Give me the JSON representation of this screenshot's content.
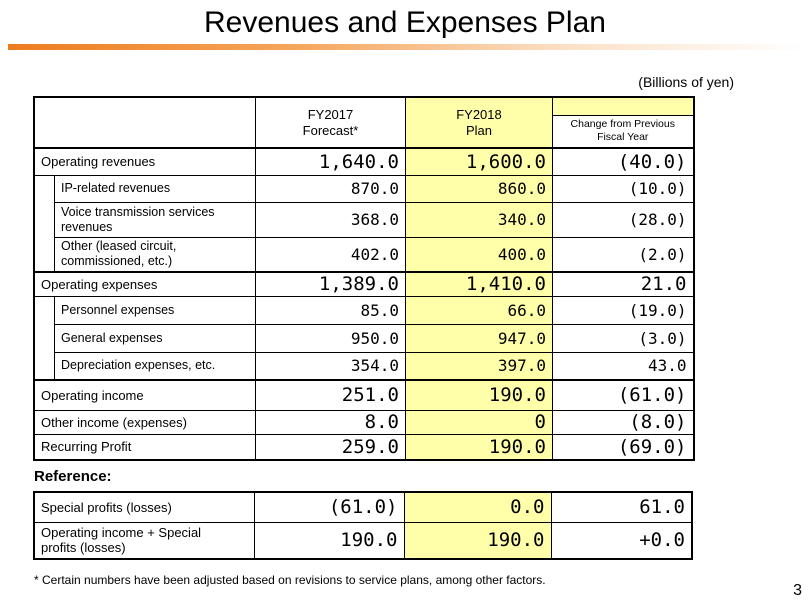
{
  "title": "Revenues and Expenses Plan",
  "units": "(Billions of yen)",
  "header": {
    "fy2017": "FY2017",
    "fy2017_sub": "Forecast*",
    "fy2018": "FY2018",
    "fy2018_sub": "Plan",
    "change": "Change from Previous",
    "change_sub": "Fiscal Year"
  },
  "rows": {
    "op_rev": {
      "label": "Operating revenues",
      "fy2017": "1,640.0",
      "fy2018": "1,600.0",
      "change": "(40.0)"
    },
    "ip_rev": {
      "label": "IP-related revenues",
      "fy2017": "870.0",
      "fy2018": "860.0",
      "change": "(10.0)"
    },
    "voice_rev": {
      "label1": "Voice transmission services",
      "label2": "revenues",
      "fy2017": "368.0",
      "fy2018": "340.0",
      "change": "(28.0)"
    },
    "other_rev": {
      "label1": "Other (leased circuit,",
      "label2": "commissioned, etc.)",
      "fy2017": "402.0",
      "fy2018": "400.0",
      "change": "(2.0)"
    },
    "op_exp": {
      "label": "Operating expenses",
      "fy2017": "1,389.0",
      "fy2018": "1,410.0",
      "change": "21.0"
    },
    "personnel": {
      "label": "Personnel expenses",
      "fy2017": "85.0",
      "fy2018": "66.0",
      "change": "(19.0)"
    },
    "general": {
      "label": "General expenses",
      "fy2017": "950.0",
      "fy2018": "947.0",
      "change": "(3.0)"
    },
    "depreciation": {
      "label": "Depreciation expenses, etc.",
      "fy2017": "354.0",
      "fy2018": "397.0",
      "change": "43.0"
    },
    "op_income": {
      "label": "Operating income",
      "fy2017": "251.0",
      "fy2018": "190.0",
      "change": "(61.0)"
    },
    "other_income": {
      "label": "Other income (expenses)",
      "fy2017": "8.0",
      "fy2018": "0",
      "change": "(8.0)"
    },
    "recurring": {
      "label": "Recurring Profit",
      "fy2017": "259.0",
      "fy2018": "190.0",
      "change": "(69.0)"
    }
  },
  "reference": {
    "heading": "Reference:",
    "special": {
      "label": "Special profits (losses)",
      "fy2017": "(61.0)",
      "fy2018": "0.0",
      "change": "61.0"
    },
    "combined": {
      "label1": "Operating income + Special",
      "label2": "profits (losses)",
      "fy2017": "190.0",
      "fy2018": "190.0",
      "change": "+0.0"
    }
  },
  "footnote": "* Certain numbers have been adjusted based on revisions to service plans, among other factors.",
  "page_number": "3",
  "colors": {
    "accent_bar": "#ee7c1e",
    "highlight": "#ffffaa"
  }
}
